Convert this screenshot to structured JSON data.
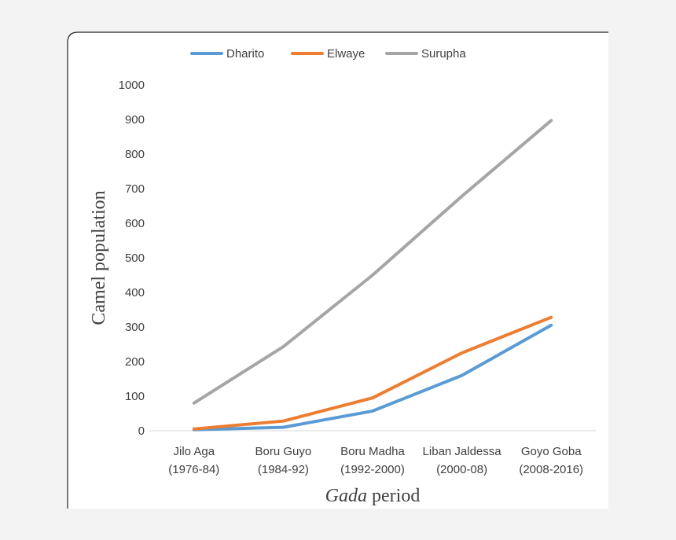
{
  "chart_data": {
    "type": "line",
    "categories": [
      [
        "Jilo Aga",
        "(1976-84)"
      ],
      [
        "Boru Guyo",
        "(1984-92)"
      ],
      [
        "Boru Madha",
        "(1992-2000)"
      ],
      [
        "Liban Jaldessa",
        "(2000-08)"
      ],
      [
        "Goyo Goba",
        "(2008-2016)"
      ]
    ],
    "series": [
      {
        "name": "Dharito",
        "color": "#5b9bd5",
        "values": [
          3,
          10,
          57,
          160,
          305
        ]
      },
      {
        "name": "Elwaye",
        "color": "#ed7d31",
        "values": [
          5,
          28,
          95,
          225,
          328
        ]
      },
      {
        "name": "Surupha",
        "color": "#a5a5a5",
        "values": [
          80,
          243,
          450,
          678,
          897
        ]
      }
    ],
    "xlabel_italic": "Gada",
    "xlabel_rest": " period",
    "ylabel": "Camel population",
    "ylim": [
      0,
      1000
    ],
    "yticks": [
      0,
      100,
      200,
      300,
      400,
      500,
      600,
      700,
      800,
      900,
      1000
    ],
    "grid": false,
    "legend_position": "top"
  }
}
